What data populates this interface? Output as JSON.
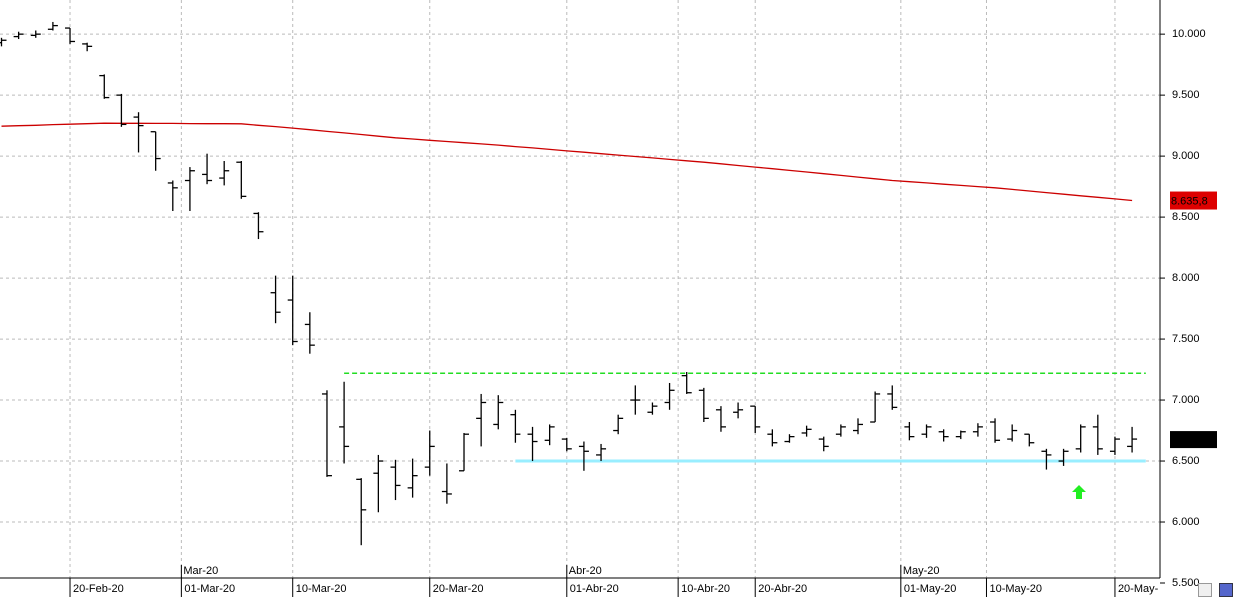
{
  "chart_data": {
    "type": "ohlc",
    "color": "#000000",
    "x": [
      "2020-02-14",
      "2020-02-17",
      "2020-02-18",
      "2020-02-19",
      "2020-02-20",
      "2020-02-21",
      "2020-02-24",
      "2020-02-25",
      "2020-02-26",
      "2020-02-27",
      "2020-02-28",
      "2020-03-02",
      "2020-03-03",
      "2020-03-04",
      "2020-03-05",
      "2020-03-06",
      "2020-03-09",
      "2020-03-10",
      "2020-03-11",
      "2020-03-12",
      "2020-03-13",
      "2020-03-16",
      "2020-03-17",
      "2020-03-18",
      "2020-03-19",
      "2020-03-20",
      "2020-03-23",
      "2020-03-24",
      "2020-03-25",
      "2020-03-26",
      "2020-03-27",
      "2020-03-30",
      "2020-03-31",
      "2020-04-01",
      "2020-04-02",
      "2020-04-03",
      "2020-04-06",
      "2020-04-07",
      "2020-04-08",
      "2020-04-09",
      "2020-04-14",
      "2020-04-15",
      "2020-04-16",
      "2020-04-17",
      "2020-04-20",
      "2020-04-21",
      "2020-04-22",
      "2020-04-23",
      "2020-04-24",
      "2020-04-27",
      "2020-04-28",
      "2020-04-29",
      "2020-04-30",
      "2020-05-04",
      "2020-05-05",
      "2020-05-06",
      "2020-05-07",
      "2020-05-08",
      "2020-05-11",
      "2020-05-12",
      "2020-05-13",
      "2020-05-14",
      "2020-05-15",
      "2020-05-18",
      "2020-05-19",
      "2020-05-20",
      "2020-05-21"
    ],
    "open": [
      9.93,
      9.98,
      9.99,
      10.04,
      10.05,
      9.92,
      9.66,
      9.5,
      9.32,
      9.2,
      8.78,
      8.8,
      8.85,
      8.82,
      8.95,
      8.53,
      7.88,
      7.82,
      7.62,
      7.05,
      6.78,
      6.35,
      6.4,
      6.45,
      6.28,
      6.45,
      6.25,
      6.42,
      6.85,
      6.8,
      6.88,
      6.72,
      6.67,
      6.68,
      6.62,
      6.55,
      6.75,
      7.0,
      6.9,
      6.98,
      7.2,
      7.08,
      6.92,
      6.9,
      6.95,
      6.72,
      6.66,
      6.73,
      6.68,
      6.72,
      6.75,
      6.82,
      7.05,
      6.78,
      6.72,
      6.74,
      6.7,
      6.74,
      6.82,
      6.68,
      6.72,
      6.58,
      6.5,
      6.6,
      6.78,
      6.58,
      6.62
    ],
    "high": [
      9.97,
      10.02,
      10.03,
      10.1,
      10.05,
      9.93,
      9.67,
      9.51,
      9.36,
      9.2,
      8.8,
      8.91,
      9.02,
      8.96,
      8.96,
      8.54,
      8.02,
      8.02,
      7.72,
      7.08,
      7.15,
      6.36,
      6.55,
      6.51,
      6.52,
      6.75,
      6.48,
      6.73,
      7.05,
      7.04,
      6.92,
      6.78,
      6.8,
      6.69,
      6.66,
      6.64,
      6.88,
      7.12,
      6.98,
      7.14,
      7.23,
      7.1,
      6.95,
      6.98,
      6.95,
      6.76,
      6.72,
      6.79,
      6.7,
      6.8,
      6.85,
      7.07,
      7.12,
      6.82,
      6.8,
      6.76,
      6.75,
      6.81,
      6.85,
      6.8,
      6.72,
      6.6,
      6.6,
      6.8,
      6.88,
      6.7,
      6.78
    ],
    "low": [
      9.9,
      9.96,
      9.97,
      10.03,
      9.92,
      9.86,
      9.47,
      9.24,
      9.03,
      8.88,
      8.55,
      8.55,
      8.77,
      8.76,
      8.65,
      8.32,
      7.63,
      7.45,
      7.38,
      6.37,
      6.48,
      5.81,
      6.08,
      6.18,
      6.2,
      6.38,
      6.15,
      6.42,
      6.62,
      6.76,
      6.65,
      6.5,
      6.63,
      6.58,
      6.42,
      6.5,
      6.72,
      6.88,
      6.88,
      6.92,
      7.05,
      6.82,
      6.74,
      6.85,
      6.73,
      6.62,
      6.65,
      6.7,
      6.58,
      6.7,
      6.72,
      6.82,
      6.92,
      6.67,
      6.69,
      6.66,
      6.68,
      6.7,
      6.65,
      6.66,
      6.62,
      6.43,
      6.46,
      6.57,
      6.55,
      6.55,
      6.57
    ],
    "close": [
      9.95,
      10.0,
      10.0,
      10.07,
      9.94,
      9.9,
      9.48,
      9.26,
      9.25,
      8.98,
      8.74,
      8.88,
      8.8,
      8.88,
      8.67,
      8.38,
      7.72,
      7.48,
      7.45,
      6.38,
      6.62,
      6.1,
      6.5,
      6.3,
      6.38,
      6.62,
      6.23,
      6.72,
      6.98,
      6.98,
      6.72,
      6.66,
      6.78,
      6.6,
      6.58,
      6.6,
      6.85,
      7.0,
      6.95,
      7.08,
      7.06,
      6.85,
      6.78,
      6.92,
      6.78,
      6.65,
      6.7,
      6.76,
      6.62,
      6.78,
      6.8,
      7.05,
      6.94,
      6.7,
      6.78,
      6.7,
      6.74,
      6.78,
      6.67,
      6.75,
      6.65,
      6.55,
      6.58,
      6.78,
      6.6,
      6.68,
      6.68
    ],
    "moving_average": {
      "color": "#cc0000",
      "values": [
        9.245,
        9.249,
        9.253,
        9.258,
        9.262,
        9.266,
        9.27,
        9.269,
        9.269,
        9.268,
        9.268,
        9.267,
        9.266,
        9.266,
        9.265,
        9.253,
        9.242,
        9.23,
        9.217,
        9.203,
        9.19,
        9.177,
        9.163,
        9.15,
        9.14,
        9.13,
        9.12,
        9.11,
        9.1,
        9.09,
        9.078,
        9.067,
        9.055,
        9.043,
        9.032,
        9.02,
        9.008,
        8.997,
        8.985,
        8.973,
        8.962,
        8.95,
        8.937,
        8.923,
        8.91,
        8.897,
        8.883,
        8.87,
        8.856,
        8.842,
        8.828,
        8.814,
        8.8,
        8.79,
        8.78,
        8.77,
        8.76,
        8.75,
        8.74,
        8.727,
        8.714,
        8.701,
        8.688,
        8.675,
        8.662,
        8.649,
        8.6358
      ],
      "last_label": "8.635,8"
    },
    "levels": [
      {
        "value": 7.22,
        "start": "2020-03-13",
        "end": "2020-05-21",
        "color": "#22dd22",
        "dashed": true
      },
      {
        "value": 6.5,
        "start": "2020-03-27",
        "end": "2020-05-21",
        "color": "#99eeff",
        "dashed": false
      }
    ],
    "ylim": [
      5.5,
      10.28
    ],
    "yticks": [
      {
        "value": 5.5,
        "label": "5.500"
      },
      {
        "value": 6,
        "label": "6.000"
      },
      {
        "value": 6.5,
        "label": "6.500"
      },
      {
        "value": 7,
        "label": "7.000"
      },
      {
        "value": 7.5,
        "label": "7.500"
      },
      {
        "value": 8,
        "label": "8.000"
      },
      {
        "value": 8.5,
        "label": "8.500"
      },
      {
        "value": 9,
        "label": "9.000"
      },
      {
        "value": 9.5,
        "label": "9.500"
      },
      {
        "value": 10,
        "label": "10.000"
      }
    ],
    "xticks": [
      {
        "value": "2020-02-20",
        "label": "20-Feb-20"
      },
      {
        "value": "2020-03-01",
        "label": "01-Mar-20"
      },
      {
        "value": "2020-03-10",
        "label": "10-Mar-20"
      },
      {
        "value": "2020-03-20",
        "label": "20-Mar-20"
      },
      {
        "value": "2020-04-01",
        "label": "01-Abr-20"
      },
      {
        "value": "2020-04-10",
        "label": "10-Abr-20"
      },
      {
        "value": "2020-04-20",
        "label": "20-Abr-20"
      },
      {
        "value": "2020-05-01",
        "label": "01-May-20"
      },
      {
        "value": "2020-05-10",
        "label": "10-May-20"
      },
      {
        "value": "2020-05-20",
        "label": "20-May-"
      }
    ],
    "month_ticks": [
      {
        "value": "2020-03-01",
        "label": "Mar-20"
      },
      {
        "value": "2020-04-01",
        "label": "Abr-20"
      },
      {
        "value": "2020-05-01",
        "label": "May-20"
      }
    ],
    "grid": true
  }
}
